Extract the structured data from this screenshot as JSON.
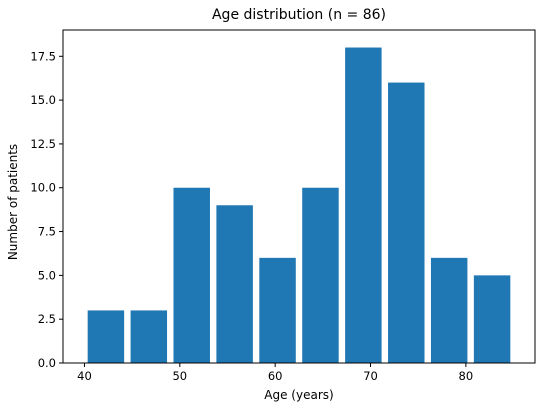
{
  "chart_data": {
    "type": "bar",
    "title": "Age distribution (n = 86)",
    "xlabel": "Age (years)",
    "ylabel": "Number of patients",
    "bin_edges": [
      40,
      44.5,
      49,
      53.5,
      58,
      62.5,
      67,
      71.5,
      76,
      80.5,
      85
    ],
    "values": [
      3,
      3,
      10,
      9,
      6,
      10,
      18,
      16,
      6,
      5
    ],
    "xlim": [
      37.75,
      87.25
    ],
    "ylim": [
      0,
      19.0
    ],
    "xticks": [
      40,
      50,
      60,
      70,
      80
    ],
    "xtick_labels": [
      "40",
      "50",
      "60",
      "70",
      "80"
    ],
    "yticks": [
      0,
      2.5,
      5,
      7.5,
      10,
      12.5,
      15,
      17.5
    ],
    "ytick_labels": [
      "0.0",
      "2.5",
      "5.0",
      "7.5",
      "10.0",
      "12.5",
      "15.0",
      "17.5"
    ],
    "bar_color": "#1f77b4",
    "grid": false
  }
}
